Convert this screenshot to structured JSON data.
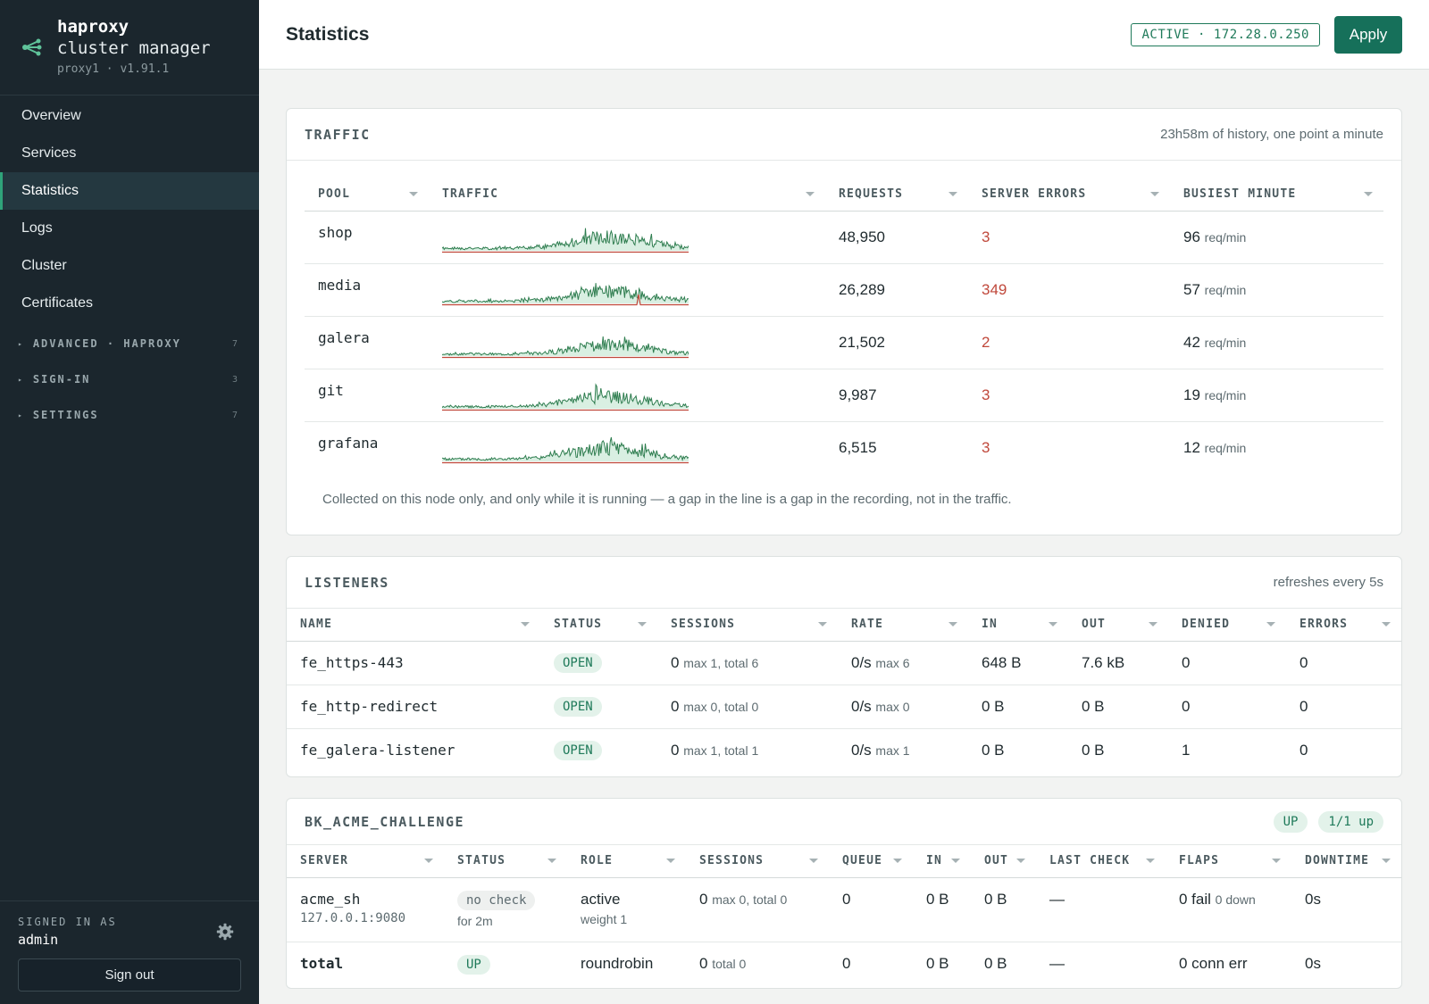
{
  "brand": {
    "name": "haproxy",
    "subtitle": "cluster manager",
    "node": "proxy1 · v1.91.1"
  },
  "nav": {
    "items": [
      {
        "label": "Overview"
      },
      {
        "label": "Services"
      },
      {
        "label": "Statistics"
      },
      {
        "label": "Logs"
      },
      {
        "label": "Cluster"
      },
      {
        "label": "Certificates"
      }
    ],
    "groups": [
      {
        "label": "ADVANCED · HAPROXY",
        "count": "7"
      },
      {
        "label": "SIGN-IN",
        "count": "3"
      },
      {
        "label": "SETTINGS",
        "count": "7"
      }
    ]
  },
  "footer": {
    "signed_label": "SIGNED IN AS",
    "user": "admin",
    "signout": "Sign out"
  },
  "header": {
    "title": "Statistics",
    "status": "ACTIVE · 172.28.0.250",
    "apply": "Apply"
  },
  "traffic": {
    "title": "TRAFFIC",
    "note": "23h58m of history, one point a minute",
    "columns": [
      "POOL",
      "TRAFFIC",
      "REQUESTS",
      "SERVER ERRORS",
      "BUSIEST MINUTE"
    ],
    "unit": "req/min",
    "rows": [
      {
        "pool": "shop",
        "requests": "48,950",
        "errors": "3",
        "busiest": "96"
      },
      {
        "pool": "media",
        "requests": "26,289",
        "errors": "349",
        "busiest": "57"
      },
      {
        "pool": "galera",
        "requests": "21,502",
        "errors": "2",
        "busiest": "42"
      },
      {
        "pool": "git",
        "requests": "9,987",
        "errors": "3",
        "busiest": "19"
      },
      {
        "pool": "grafana",
        "requests": "6,515",
        "errors": "3",
        "busiest": "12"
      }
    ],
    "footnote": "Collected on this node only, and only while it is running — a gap in the line is a gap in the recording, not in the traffic.",
    "colors": {
      "line": "#2e7d4f",
      "fill": "#d9efe2",
      "error": "#c0483b"
    }
  },
  "listeners": {
    "title": "LISTENERS",
    "note": "refreshes every 5s",
    "columns": [
      "NAME",
      "STATUS",
      "SESSIONS",
      "RATE",
      "IN",
      "OUT",
      "DENIED",
      "ERRORS"
    ],
    "rows": [
      {
        "name": "fe_https-443",
        "status": "OPEN",
        "sessions": "0",
        "sessions_sub": "max 1, total 6",
        "rate": "0/s",
        "rate_sub": "max 6",
        "in": "648 B",
        "out": "7.6 kB",
        "denied": "0",
        "errors": "0"
      },
      {
        "name": "fe_http-redirect",
        "status": "OPEN",
        "sessions": "0",
        "sessions_sub": "max 0, total 0",
        "rate": "0/s",
        "rate_sub": "max 0",
        "in": "0 B",
        "out": "0 B",
        "denied": "0",
        "errors": "0"
      },
      {
        "name": "fe_galera-listener",
        "status": "OPEN",
        "sessions": "0",
        "sessions_sub": "max 1, total 1",
        "rate": "0/s",
        "rate_sub": "max 1",
        "in": "0 B",
        "out": "0 B",
        "denied": "1",
        "errors": "0"
      }
    ]
  },
  "backend": {
    "title": "BK_ACME_CHALLENGE",
    "status": "UP",
    "servers_up": "1/1 up",
    "columns": [
      "SERVER",
      "STATUS",
      "ROLE",
      "SESSIONS",
      "QUEUE",
      "IN",
      "OUT",
      "LAST CHECK",
      "FLAPS",
      "DOWNTIME"
    ],
    "server": {
      "name": "acme_sh",
      "addr": "127.0.0.1:9080",
      "status": "no check",
      "status_sub": "for 2m",
      "role": "active",
      "role_sub": "weight 1",
      "sessions": "0",
      "sessions_sub": "max 0, total 0",
      "queue": "0",
      "in": "0 B",
      "out": "0 B",
      "last_check": "—",
      "flaps": "0 fail",
      "flaps_sub": "0 down",
      "downtime": "0s"
    },
    "total": {
      "name": "total",
      "status": "UP",
      "role": "roundrobin",
      "sessions": "0",
      "sessions_sub": "total 0",
      "queue": "0",
      "in": "0 B",
      "out": "0 B",
      "last_check": "—",
      "flaps": "0 conn err",
      "downtime": "0s"
    }
  }
}
